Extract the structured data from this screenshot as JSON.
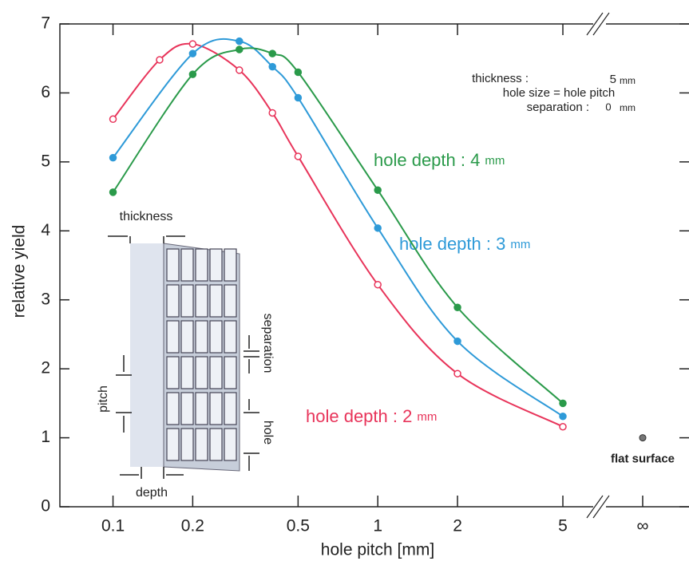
{
  "chart_data": {
    "type": "line",
    "x_label": "hole pitch [mm]",
    "y_label": "relative yield",
    "log_x": true,
    "xlim": [
      0.063,
      6.6
    ],
    "ylim": [
      0,
      7
    ],
    "xticks": [
      0.1,
      0.2,
      0.5,
      1,
      2,
      5
    ],
    "yticks": [
      0,
      1,
      2,
      3,
      4,
      5,
      6,
      7
    ],
    "infinity_label": "∞",
    "series": [
      {
        "name": "hole depth : 2",
        "unit": "mm",
        "color": "#e8345a",
        "hollow": true,
        "x": [
          0.1,
          0.15,
          0.2,
          0.3,
          0.4,
          0.5,
          1,
          2,
          5
        ],
        "values": [
          5.62,
          6.48,
          6.71,
          6.33,
          5.71,
          5.08,
          3.22,
          1.93,
          1.16
        ]
      },
      {
        "name": "hole depth : 3",
        "unit": "mm",
        "color": "#2e9ad8",
        "hollow": false,
        "x": [
          0.1,
          0.2,
          0.3,
          0.4,
          0.5,
          1,
          2,
          5
        ],
        "values": [
          5.06,
          6.57,
          6.75,
          6.38,
          5.93,
          4.04,
          2.4,
          1.31
        ]
      },
      {
        "name": "hole depth : 4",
        "unit": "mm",
        "color": "#2a9a4a",
        "hollow": false,
        "x": [
          0.1,
          0.2,
          0.3,
          0.4,
          0.5,
          1,
          2,
          5
        ],
        "values": [
          4.56,
          6.27,
          6.63,
          6.57,
          6.3,
          4.59,
          2.89,
          1.5
        ]
      }
    ],
    "flat_surface": {
      "label": "flat surface",
      "value": 1
    },
    "conditions": {
      "thickness_label": "thickness :",
      "thickness": "5",
      "thickness_unit": "mm",
      "hole_size": "hole size = hole pitch",
      "separation_label": "separation :",
      "separation": "0",
      "separation_unit": "mm"
    },
    "diagram_labels": {
      "thickness": "thickness",
      "pitch": "pitch",
      "depth": "depth",
      "separation": "separation",
      "hole": "hole"
    }
  }
}
